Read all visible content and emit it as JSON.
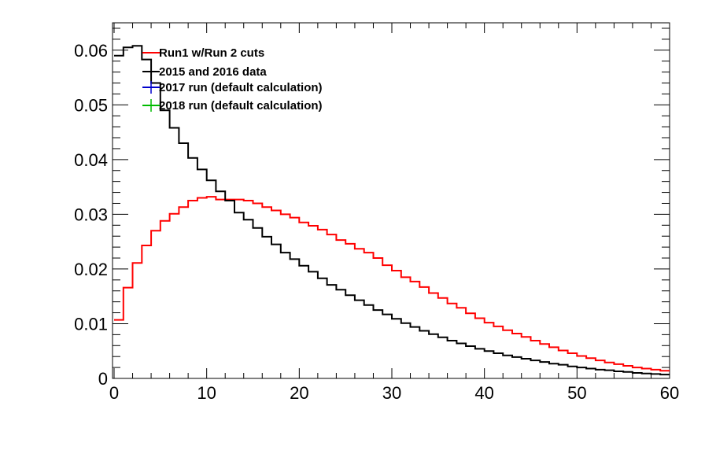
{
  "chart_data": {
    "type": "line",
    "title": "",
    "xlabel": "",
    "ylabel": "",
    "xlim": [
      0,
      60
    ],
    "ylim": [
      0,
      0.065
    ],
    "grid": false,
    "legend_position": "top-left",
    "x_ticks": [
      "0",
      "10",
      "20",
      "30",
      "40",
      "50",
      "60"
    ],
    "y_ticks": [
      "0",
      "0.01",
      "0.02",
      "0.03",
      "0.04",
      "0.05",
      "0.06"
    ],
    "bin_edges": [
      0,
      1,
      2,
      3,
      4,
      5,
      6,
      7,
      8,
      9,
      10,
      11,
      12,
      13,
      14,
      15,
      16,
      17,
      18,
      19,
      20,
      21,
      22,
      23,
      24,
      25,
      26,
      27,
      28,
      29,
      30,
      31,
      32,
      33,
      34,
      35,
      36,
      37,
      38,
      39,
      40,
      41,
      42,
      43,
      44,
      45,
      46,
      47,
      48,
      49,
      50,
      51,
      52,
      53,
      54,
      55,
      56,
      57,
      58,
      59,
      60
    ],
    "series": [
      {
        "name": "Run1 w/Run 2 cuts",
        "color": "#ff0000",
        "style": "step",
        "values": [
          0.0107,
          0.0166,
          0.0211,
          0.0243,
          0.027,
          0.0288,
          0.0301,
          0.0313,
          0.0325,
          0.033,
          0.0332,
          0.0327,
          0.0327,
          0.0327,
          0.0325,
          0.032,
          0.0313,
          0.0307,
          0.03,
          0.0294,
          0.0285,
          0.0279,
          0.0272,
          0.0263,
          0.0253,
          0.0246,
          0.0237,
          0.023,
          0.022,
          0.0207,
          0.0197,
          0.0185,
          0.0177,
          0.0167,
          0.0156,
          0.0147,
          0.0137,
          0.0129,
          0.0119,
          0.011,
          0.0102,
          0.0095,
          0.0088,
          0.0082,
          0.0076,
          0.0069,
          0.0063,
          0.0057,
          0.0051,
          0.0046,
          0.0041,
          0.0037,
          0.0033,
          0.0029,
          0.0026,
          0.0023,
          0.002,
          0.0018,
          0.0016,
          0.0014
        ]
      },
      {
        "name": "2015 and 2016 data",
        "color": "#000000",
        "style": "step",
        "values": [
          0.059,
          0.0605,
          0.0608,
          0.0583,
          0.054,
          0.049,
          0.0458,
          0.043,
          0.0403,
          0.0382,
          0.0362,
          0.0342,
          0.0325,
          0.0303,
          0.029,
          0.0275,
          0.0259,
          0.0245,
          0.023,
          0.0218,
          0.0206,
          0.0195,
          0.0183,
          0.0171,
          0.0162,
          0.0152,
          0.0143,
          0.0134,
          0.0125,
          0.0117,
          0.0109,
          0.0101,
          0.0094,
          0.0087,
          0.0081,
          0.0075,
          0.0069,
          0.0064,
          0.0059,
          0.0054,
          0.005,
          0.0046,
          0.0042,
          0.0039,
          0.0036,
          0.0033,
          0.003,
          0.0027,
          0.0025,
          0.0022,
          0.002,
          0.0018,
          0.0016,
          0.0015,
          0.0013,
          0.0012,
          0.001,
          0.0009,
          0.0008,
          0.0007
        ]
      },
      {
        "name": "2017 run (default calculation)",
        "color": "#0000cc",
        "style": "step",
        "values": []
      },
      {
        "name": "2018 run (default calculation)",
        "color": "#00bb00",
        "style": "step",
        "values": []
      }
    ]
  }
}
